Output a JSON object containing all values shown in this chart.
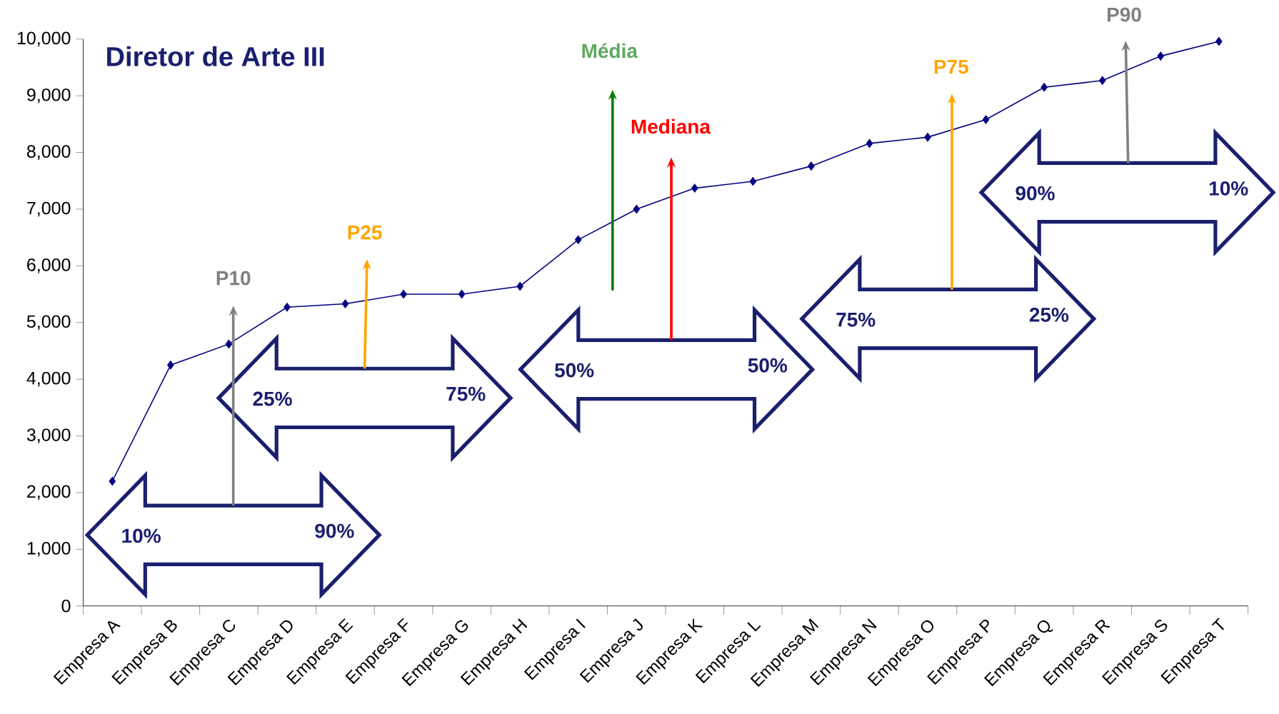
{
  "chart_data": {
    "type": "line",
    "title": "Diretor de Arte III",
    "categories": [
      "Empresa A",
      "Empresa B",
      "Empresa C",
      "Empresa D",
      "Empresa E",
      "Empresa F",
      "Empresa G",
      "Empresa H",
      "Empresa I",
      "Empresa J",
      "Empresa K",
      "Empresa L",
      "Empresa M",
      "Empresa N",
      "Empresa O",
      "Empresa P",
      "Empresa Q",
      "Empresa R",
      "Empresa S",
      "Empresa T"
    ],
    "values": [
      2200,
      4250,
      4620,
      5270,
      5330,
      5500,
      5500,
      5640,
      6460,
      7000,
      7370,
      7490,
      7760,
      8160,
      8270,
      8580,
      9150,
      9270,
      9700,
      9960
    ],
    "color": "#000080",
    "marker": "diamond",
    "ylim": [
      0,
      10000
    ],
    "yticks": [
      0,
      {
        "value": 1000,
        "label": "1,000"
      },
      {
        "value": 2000,
        "label": "2,000"
      },
      {
        "value": 3000,
        "label": "3,000"
      },
      {
        "value": 4000,
        "label": "4,000"
      },
      {
        "value": 5000,
        "label": "5,000"
      },
      {
        "value": 6000,
        "label": "6,000"
      },
      {
        "value": 7000,
        "label": "7,000"
      },
      {
        "value": 8000,
        "label": "8,000"
      },
      {
        "value": 9000,
        "label": "9,000"
      },
      {
        "value": 10000,
        "label": "10,000"
      }
    ],
    "annotations": [
      "P10",
      "P25",
      "Média",
      "Mediana",
      "P75",
      "P90",
      "10%",
      "90%",
      "25%",
      "75%",
      "50%",
      "50%",
      "75%",
      "25%",
      "90%",
      "10%"
    ]
  }
}
